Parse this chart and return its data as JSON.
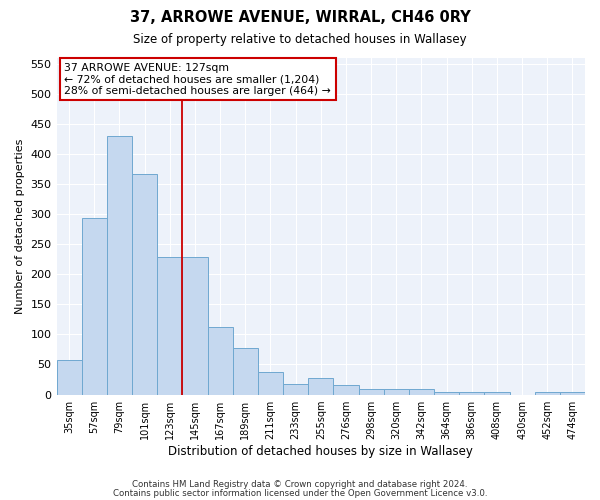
{
  "title": "37, ARROWE AVENUE, WIRRAL, CH46 0RY",
  "subtitle": "Size of property relative to detached houses in Wallasey",
  "xlabel": "Distribution of detached houses by size in Wallasey",
  "ylabel": "Number of detached properties",
  "bar_color": "#c5d8ef",
  "bar_edge_color": "#6fa8d0",
  "categories": [
    "35sqm",
    "57sqm",
    "79sqm",
    "101sqm",
    "123sqm",
    "145sqm",
    "167sqm",
    "189sqm",
    "211sqm",
    "233sqm",
    "255sqm",
    "276sqm",
    "298sqm",
    "320sqm",
    "342sqm",
    "364sqm",
    "386sqm",
    "408sqm",
    "430sqm",
    "452sqm",
    "474sqm"
  ],
  "values": [
    57,
    293,
    430,
    367,
    228,
    228,
    113,
    77,
    38,
    17,
    28,
    16,
    10,
    10,
    9,
    5,
    5,
    5,
    0,
    5,
    4
  ],
  "ylim": [
    0,
    560
  ],
  "yticks": [
    0,
    50,
    100,
    150,
    200,
    250,
    300,
    350,
    400,
    450,
    500,
    550
  ],
  "red_line_x": 4.5,
  "annotation_title": "37 ARROWE AVENUE: 127sqm",
  "annotation_line1": "← 72% of detached houses are smaller (1,204)",
  "annotation_line2": "28% of semi-detached houses are larger (464) →",
  "footer1": "Contains HM Land Registry data © Crown copyright and database right 2024.",
  "footer2": "Contains public sector information licensed under the Open Government Licence v3.0.",
  "background_color": "#edf2fa",
  "grid_color": "#ffffff",
  "fig_bg_color": "#ffffff"
}
